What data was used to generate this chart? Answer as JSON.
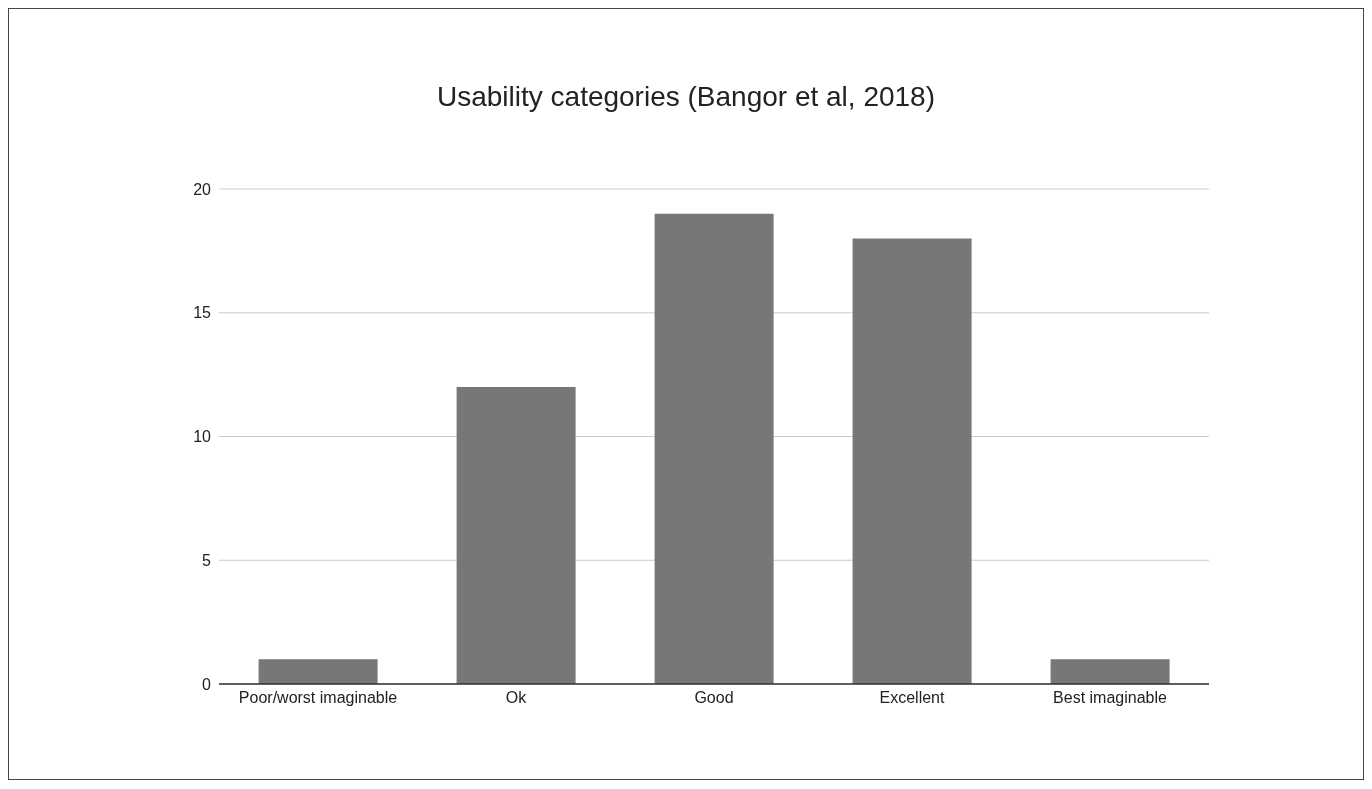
{
  "chart_data": {
    "type": "bar",
    "title": "Usability categories (Bangor et al, 2018)",
    "categories": [
      "Poor/worst imaginable",
      "Ok",
      "Good",
      "Excellent",
      "Best imaginable"
    ],
    "values": [
      1,
      12,
      19,
      18,
      1
    ],
    "color": "#777777",
    "ylim": [
      0,
      20
    ],
    "yticks": [
      0,
      5,
      10,
      15,
      20
    ],
    "grid": "y",
    "legend": false
  }
}
